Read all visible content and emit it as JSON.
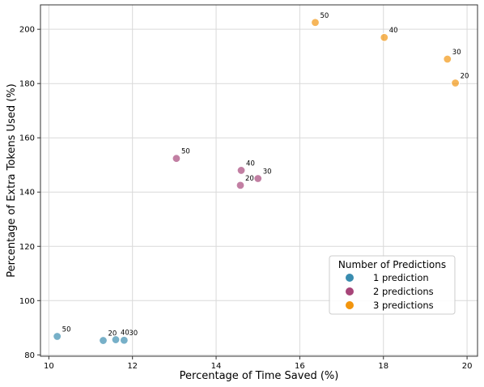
{
  "chart_data": {
    "type": "scatter",
    "title": "",
    "xlabel": "Percentage of Time Saved (%)",
    "ylabel": "Percentage of Extra Tokens Used (%)",
    "xlim": [
      9.8,
      20.25
    ],
    "ylim": [
      79.5,
      209
    ],
    "xticks": [
      10,
      12,
      14,
      16,
      18,
      20
    ],
    "yticks": [
      80,
      100,
      120,
      140,
      160,
      180,
      200
    ],
    "grid": true,
    "legend": {
      "title": "Number of Predictions",
      "placement": "lower-right"
    },
    "series": [
      {
        "name": "1 prediction",
        "color": "#2e86ab",
        "points": [
          {
            "x": 10.2,
            "y": 86.8,
            "label": "50"
          },
          {
            "x": 11.3,
            "y": 85.3,
            "label": "20"
          },
          {
            "x": 11.6,
            "y": 85.6,
            "label": "40"
          },
          {
            "x": 11.8,
            "y": 85.4,
            "label": "30"
          }
        ]
      },
      {
        "name": "2 predictions",
        "color": "#a23b72",
        "points": [
          {
            "x": 13.05,
            "y": 152.4,
            "label": "50"
          },
          {
            "x": 14.6,
            "y": 148.0,
            "label": "40"
          },
          {
            "x": 15.0,
            "y": 145.0,
            "label": "30"
          },
          {
            "x": 14.58,
            "y": 142.5,
            "label": "20"
          }
        ]
      },
      {
        "name": "3 predictions",
        "color": "#f18f01",
        "points": [
          {
            "x": 16.37,
            "y": 202.5,
            "label": "50"
          },
          {
            "x": 18.02,
            "y": 197.0,
            "label": "40"
          },
          {
            "x": 19.53,
            "y": 189.0,
            "label": "30"
          },
          {
            "x": 19.72,
            "y": 180.2,
            "label": "20"
          }
        ]
      }
    ]
  }
}
